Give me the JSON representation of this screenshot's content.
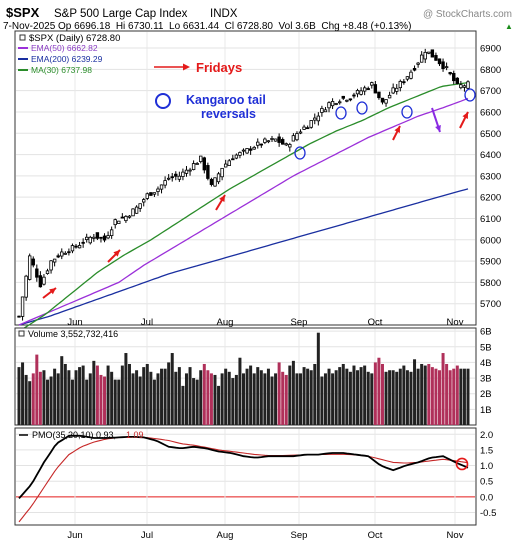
{
  "header": {
    "symbol": "$SPX",
    "name": "S&P 500 Large Cap Index",
    "exchange": "INDX",
    "date": "7-Nov-2025",
    "ohlc": "Op 6696.18  Hi 6730.11  Lo 6631.44  Cl 6728.80  Vol 3.6B  Chg +8.48 (+0.13%)",
    "chg_arrow": "▲",
    "watermark": "@ StockCharts.com"
  },
  "colors": {
    "price": "#000000",
    "ema50": "#9b30d9",
    "ema200": "#1a2fa0",
    "ma30": "#2a8c2a",
    "vol_up": "#222222",
    "vol_down": "#b0305a",
    "pmo": "#000000",
    "pmo_signal": "#c62828",
    "annotation_red": "#e41a1a",
    "annotation_blue": "#1f2fd6",
    "annotation_purple": "#8a2be2"
  },
  "legend": {
    "price": "$SPX (Daily) 6728.80",
    "ema50": "EMA(50) 6662.82",
    "ema200": "EMA(200) 6239.29",
    "ma30": "MA(30) 6737.98"
  },
  "annotations": {
    "fridays": "Fridays",
    "kangaroo_line1": "Kangaroo tail",
    "kangaroo_line2": "reversals"
  },
  "volume_label": "Volume 3,552,732,416",
  "pmo_label": "PMO(35,20,10) 0.93,",
  "pmo_signal_value": "1.09",
  "chart_data": [
    {
      "type": "candlestick",
      "title": "$SPX S&P 500 Large Cap Index INDX",
      "x_ticks": [
        "Jun",
        "Jul",
        "Aug",
        "Sep",
        "Oct",
        "Nov"
      ],
      "ylim": [
        5600,
        6980
      ],
      "y_ticks": [
        5700,
        5800,
        5900,
        6000,
        6100,
        6200,
        6300,
        6400,
        6500,
        6600,
        6700,
        6800,
        6900
      ],
      "last_close": 6728.8,
      "price_anchors": [
        5640,
        5920,
        5790,
        5900,
        5940,
        5960,
        5990,
        6020,
        6000,
        6090,
        6110,
        6150,
        6210,
        6240,
        6290,
        6300,
        6340,
        6380,
        6250,
        6340,
        6390,
        6410,
        6440,
        6460,
        6470,
        6440,
        6500,
        6540,
        6590,
        6640,
        6660,
        6670,
        6700,
        6730,
        6640,
        6700,
        6750,
        6810,
        6890,
        6850,
        6800,
        6720,
        6729
      ],
      "series": [
        {
          "name": "EMA(50)",
          "last": 6662.82,
          "anchors": [
            5600,
            5650,
            5700,
            5750,
            5800,
            5880,
            5950,
            6020,
            6090,
            6160,
            6230,
            6300,
            6360,
            6420,
            6480,
            6530,
            6580,
            6620,
            6663
          ]
        },
        {
          "name": "EMA(200)",
          "last": 6239.29,
          "anchors": [
            5600,
            5640,
            5690,
            5740,
            5790,
            5840,
            5880,
            5920,
            5960,
            6000,
            6040,
            6080,
            6120,
            6160,
            6200,
            6239
          ]
        },
        {
          "name": "MA(30)",
          "last": 6737.98,
          "anchors": [
            5570,
            5650,
            5750,
            5850,
            5930,
            6000,
            6080,
            6160,
            6240,
            6310,
            6380,
            6450,
            6510,
            6560,
            6620,
            6670,
            6720,
            6738
          ]
        }
      ]
    },
    {
      "type": "bar",
      "title": "Volume",
      "last": 3552732416,
      "ylim": [
        0,
        6.2
      ],
      "y_ticks": [
        "1B",
        "2B",
        "3B",
        "4B",
        "5B",
        "6B"
      ],
      "values": [
        3.7,
        4.0,
        3.2,
        2.8,
        3.3,
        4.5,
        3.4,
        3.5,
        2.9,
        3.1,
        3.6,
        3.3,
        4.4,
        3.9,
        3.5,
        2.9,
        3.5,
        3.7,
        3.8,
        2.9,
        3.3,
        4.1,
        3.8,
        3.2,
        3.1,
        3.8,
        3.4,
        2.9,
        2.9,
        3.8,
        4.6,
        3.9,
        3.3,
        3.5,
        3.1,
        3.7,
        3.9,
        3.4,
        2.9,
        3.3,
        3.6,
        3.6,
        4.0,
        4.6,
        3.4,
        3.7,
        2.5,
        3.3,
        3.7,
        3.0,
        2.9,
        3.5,
        3.9,
        3.5,
        3.3,
        3.2,
        2.5,
        3.3,
        3.6,
        3.4,
        3.0,
        3.2,
        4.3,
        3.3,
        3.6,
        3.8,
        3.3,
        3.7,
        3.5,
        3.3,
        3.6,
        3.1,
        3.3,
        4.0,
        3.4,
        3.2,
        3.8,
        4.1,
        3.3,
        3.3,
        3.7,
        3.6,
        3.5,
        3.9,
        5.9,
        3.1,
        3.3,
        3.6,
        3.3,
        3.5,
        3.7,
        3.9,
        3.6,
        3.4,
        3.8,
        3.5,
        3.7,
        3.8,
        3.4,
        3.3,
        4.0,
        4.3,
        3.9,
        3.4,
        3.5,
        3.5,
        3.4,
        3.6,
        3.8,
        3.5,
        3.4,
        4.2,
        3.6,
        3.9,
        3.8,
        3.9,
        3.7,
        3.6,
        3.5,
        4.6,
        3.9,
        3.5,
        3.6,
        3.8,
        3.6,
        3.6,
        3.6
      ]
    },
    {
      "type": "line",
      "title": "PMO(35,20,10)",
      "ylim": [
        -0.9,
        2.2
      ],
      "y_ticks": [
        -0.5,
        0.0,
        0.5,
        1.0,
        1.5,
        2.0
      ],
      "series": [
        {
          "name": "PMO",
          "last": 0.93,
          "anchors": [
            -0.05,
            0.4,
            1.1,
            1.7,
            1.95,
            1.95,
            1.88,
            1.88,
            1.9,
            1.92,
            1.9,
            1.8,
            1.6,
            1.55,
            1.6,
            1.55,
            1.45,
            1.4,
            1.3,
            1.25,
            1.3,
            1.3,
            1.3,
            1.35,
            1.35,
            1.4,
            1.4,
            1.35,
            1.3,
            1.0,
            0.85,
            1.0,
            1.1,
            1.25,
            1.3,
            1.1,
            0.93
          ]
        },
        {
          "name": "Signal",
          "last": 1.09,
          "anchors": [
            -0.8,
            -0.3,
            0.3,
            0.9,
            1.35,
            1.6,
            1.75,
            1.85,
            1.9,
            1.92,
            1.9,
            1.86,
            1.8,
            1.7,
            1.65,
            1.58,
            1.5,
            1.45,
            1.4,
            1.35,
            1.32,
            1.32,
            1.33,
            1.34,
            1.35,
            1.36,
            1.36,
            1.34,
            1.3,
            1.2,
            1.1,
            1.08,
            1.1,
            1.15,
            1.2,
            1.15,
            1.09
          ]
        }
      ]
    }
  ]
}
